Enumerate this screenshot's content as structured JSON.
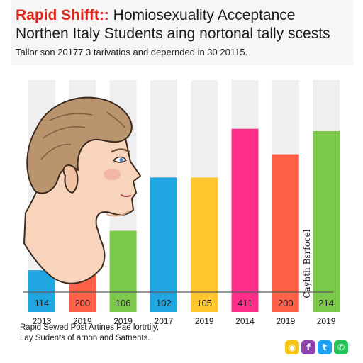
{
  "title": {
    "accent": "Rapid Shifft::",
    "rest": " Homiosexuality Acceptance",
    "line2": "Northen Italy Students aing nortonal tally scests"
  },
  "subtitle": "Tallor son 20177 3 tarivatios and depernded in 30 20115.",
  "side_label": "Cayhth Bsrfocel",
  "footer": {
    "line1": "Rapid Sewed Post Artines Pae lortrtily,",
    "line2": "Lay Sudents of arnon and Satnents."
  },
  "social": [
    {
      "name": "snapchat-icon",
      "glyph": "◉",
      "color": "#f5c518"
    },
    {
      "name": "facebook-icon",
      "glyph": "f",
      "color": "#8e44ad"
    },
    {
      "name": "twitter-icon",
      "glyph": "t",
      "color": "#1da1f2"
    },
    {
      "name": "whatsapp-icon",
      "glyph": "✆",
      "color": "#25c35a"
    }
  ],
  "chart_data": {
    "type": "bar",
    "categories": [
      "2013",
      "2019",
      "2019",
      "2017",
      "2019",
      "2014",
      "2019",
      "2019"
    ],
    "values": [
      114,
      200,
      106,
      102,
      105,
      411,
      200,
      214
    ],
    "bar_levels": [
      0.18,
      0.18,
      0.35,
      0.58,
      0.58,
      0.79,
      0.68,
      0.78
    ],
    "colors": [
      "#1fa5e0",
      "#ff6047",
      "#7cc84a",
      "#1fa5e0",
      "#ffc62e",
      "#ff2d8a",
      "#ff6047",
      "#7cc84a"
    ],
    "grid": false,
    "xlabel": "",
    "ylabel": ""
  }
}
